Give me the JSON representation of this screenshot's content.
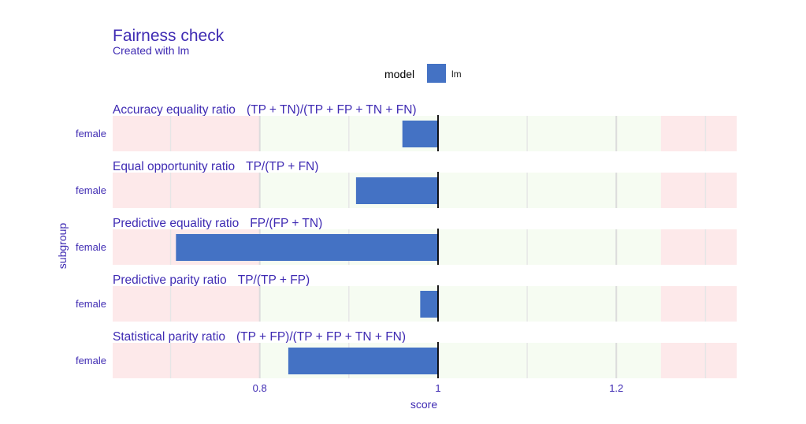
{
  "title": "Fairness check",
  "subtitle": "Created with lm",
  "legend": {
    "title": "model",
    "items": [
      {
        "label": "lm",
        "color": "#4472c4"
      }
    ]
  },
  "colors": {
    "fair_zone": "#f6fcf2",
    "unfair_zone": "#fde9ea",
    "bar": "#4472c4",
    "text": "#3f2bb3"
  },
  "chart_data": {
    "type": "bar",
    "orientation": "horizontal",
    "title": "Fairness check",
    "subtitle": "Created with lm",
    "xlabel": "score",
    "ylabel": "subgroup",
    "xlim": [
      0.635,
      1.335
    ],
    "x_ticks": [
      {
        "value": 0.8,
        "label": "0.8"
      },
      {
        "value": 1.0,
        "label": "1"
      },
      {
        "value": 1.2,
        "label": "1.2"
      }
    ],
    "baseline": 1.0,
    "fair_range": [
      0.8,
      1.25
    ],
    "grid": true,
    "legend_position": "top",
    "facets": [
      {
        "metric": "Accuracy equality ratio",
        "formula": "(TP + TN)/(TP + FP + TN + FN)",
        "subgroup": "female",
        "series": "lm",
        "value": 0.96
      },
      {
        "metric": "Equal opportunity ratio",
        "formula": "TP/(TP + FN)",
        "subgroup": "female",
        "series": "lm",
        "value": 0.908
      },
      {
        "metric": "Predictive equality ratio",
        "formula": "FP/(FP + TN)",
        "subgroup": "female",
        "series": "lm",
        "value": 0.706
      },
      {
        "metric": "Predictive parity ratio",
        "formula": "TP/(TP + FP)",
        "subgroup": "female",
        "series": "lm",
        "value": 0.98
      },
      {
        "metric": "Statistical parity ratio",
        "formula": "(TP + FP)/(TP + FP + TN + FN)",
        "subgroup": "female",
        "series": "lm",
        "value": 0.832
      }
    ]
  }
}
